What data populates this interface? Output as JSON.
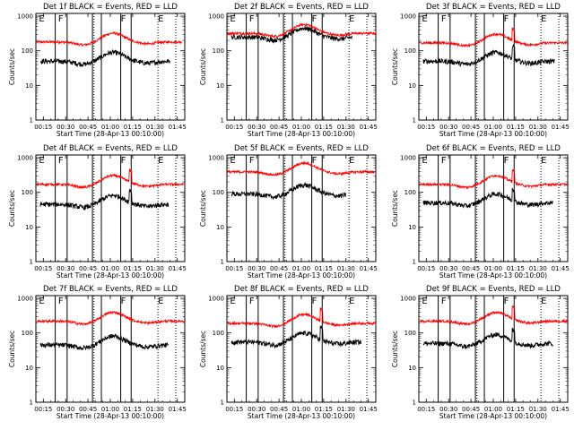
{
  "chart_data": {
    "type": "line",
    "grid": "3x3 small multiples",
    "x_tick_labels": [
      "00:15",
      "00:30",
      "00:45",
      "01:00",
      "01:15",
      "01:30",
      "01:45"
    ],
    "x_tick_minutes": [
      15,
      30,
      45,
      60,
      75,
      90,
      105
    ],
    "xlim_minutes": [
      10,
      110
    ],
    "xlabel": "Start Time (28-Apr-13 00:10:00)",
    "ylabel": "Counts/sec",
    "yscale": "log",
    "ylim": [
      1,
      1200
    ],
    "y_tick_labels": [
      "1",
      "10",
      "100",
      "1000"
    ],
    "y_tick_values": [
      1,
      10,
      100,
      1000
    ],
    "colors": {
      "events": "#000000",
      "lld": "#ff0000"
    },
    "solid_lines_minutes": [
      23,
      31,
      48,
      54,
      67,
      74
    ],
    "dotted_lines_minutes": [
      49,
      92,
      104
    ],
    "markers": [
      {
        "label": "E",
        "x": 12
      },
      {
        "label": "F",
        "x": 25
      },
      {
        "label": "F",
        "x": 67
      },
      {
        "label": "E",
        "x": 92
      }
    ],
    "marker_values_minutes": [
      12,
      25,
      67,
      92
    ],
    "panels": [
      {
        "title": "Det 1f BLACK = Events, RED = LLD",
        "events_base": 50,
        "lld_base": 180,
        "events_end": 100,
        "lld_end": 108,
        "has_spike": false
      },
      {
        "title": "Det 2f BLACK = Events, RED = LLD",
        "events_base": 250,
        "lld_base": 320,
        "events_end": 94,
        "lld_end": 110,
        "has_spike": false
      },
      {
        "title": "Det 3f BLACK = Events, RED = LLD",
        "events_base": 50,
        "lld_base": 170,
        "events_end": 101,
        "lld_end": 110,
        "has_spike": true
      },
      {
        "title": "Det 4f BLACK = Events, RED = LLD",
        "events_base": 45,
        "lld_base": 170,
        "events_end": 99,
        "lld_end": 110,
        "has_spike": true
      },
      {
        "title": "Det 5f BLACK = Events, RED = LLD",
        "events_base": 90,
        "lld_base": 390,
        "events_end": 90,
        "lld_end": 109,
        "has_spike": false
      },
      {
        "title": "Det 6f BLACK = Events, RED = LLD",
        "events_base": 50,
        "lld_base": 170,
        "events_end": 100,
        "lld_end": 110,
        "has_spike": true
      },
      {
        "title": "Det 7f BLACK = Events, RED = LLD",
        "events_base": 45,
        "lld_base": 220,
        "events_end": 99,
        "lld_end": 110,
        "has_spike": false
      },
      {
        "title": "Det 8f BLACK = Events, RED = LLD",
        "events_base": 55,
        "lld_base": 190,
        "events_end": 100,
        "lld_end": 110,
        "has_spike": true
      },
      {
        "title": "Det 9f BLACK = Events, RED = LLD",
        "events_base": 50,
        "lld_base": 220,
        "events_end": 100,
        "lld_end": 110,
        "has_spike": true
      }
    ]
  }
}
